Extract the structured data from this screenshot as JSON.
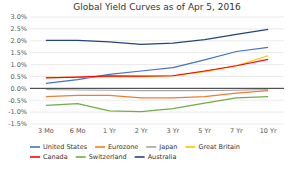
{
  "chart_data": {
    "type": "line",
    "title": "Global Yield Curves as of Apr 5, 2016",
    "categories": [
      "3 Mo",
      "6 Mo",
      "1 Yr",
      "2 Yr",
      "3 Yr",
      "5 Yr",
      "7 Yr",
      "10 Yr"
    ],
    "series": [
      {
        "name": "United States",
        "color": "#4472C4",
        "values": [
          0.21,
          0.37,
          0.59,
          0.73,
          0.87,
          1.2,
          1.55,
          1.72
        ]
      },
      {
        "name": "Eurozone",
        "color": "#ED7D31",
        "values": [
          -0.35,
          -0.3,
          -0.3,
          -0.4,
          -0.4,
          -0.35,
          -0.2,
          -0.1
        ]
      },
      {
        "name": "Japan",
        "color": "#A5A5A5",
        "values": [
          -0.05,
          -0.07,
          -0.08,
          -0.1,
          -0.1,
          -0.1,
          -0.08,
          -0.05
        ]
      },
      {
        "name": "Great Britain",
        "color": "#FFC000",
        "values": [
          0.46,
          0.46,
          0.49,
          0.49,
          0.53,
          0.7,
          0.95,
          1.37
        ]
      },
      {
        "name": "Canada",
        "color": "#FF0000",
        "values": [
          0.44,
          0.47,
          0.52,
          0.51,
          0.53,
          0.73,
          0.95,
          1.22
        ]
      },
      {
        "name": "Switzerland",
        "color": "#70AD47",
        "values": [
          -0.72,
          -0.64,
          -0.95,
          -0.98,
          -0.85,
          -0.62,
          -0.4,
          -0.35
        ]
      },
      {
        "name": "Australia",
        "color": "#264478",
        "values": [
          2.02,
          2.02,
          1.95,
          1.85,
          1.9,
          2.05,
          2.27,
          2.48
        ]
      }
    ],
    "ylim": [
      -1.5,
      3.0
    ],
    "yticks": [
      {
        "value": -1.5,
        "label": "-1.5%"
      },
      {
        "value": -1.0,
        "label": "-1.0%"
      },
      {
        "value": -0.5,
        "label": "-0.5%"
      },
      {
        "value": 0.0,
        "label": "0.0%"
      },
      {
        "value": 0.5,
        "label": "0.5%"
      },
      {
        "value": 1.0,
        "label": "1.0%"
      },
      {
        "value": 1.5,
        "label": "1.5%"
      },
      {
        "value": 2.0,
        "label": "2.0%"
      },
      {
        "value": 2.5,
        "label": "2.5%"
      },
      {
        "value": 3.0,
        "label": "3.0%"
      }
    ],
    "grid": true,
    "legend": "bottom"
  }
}
